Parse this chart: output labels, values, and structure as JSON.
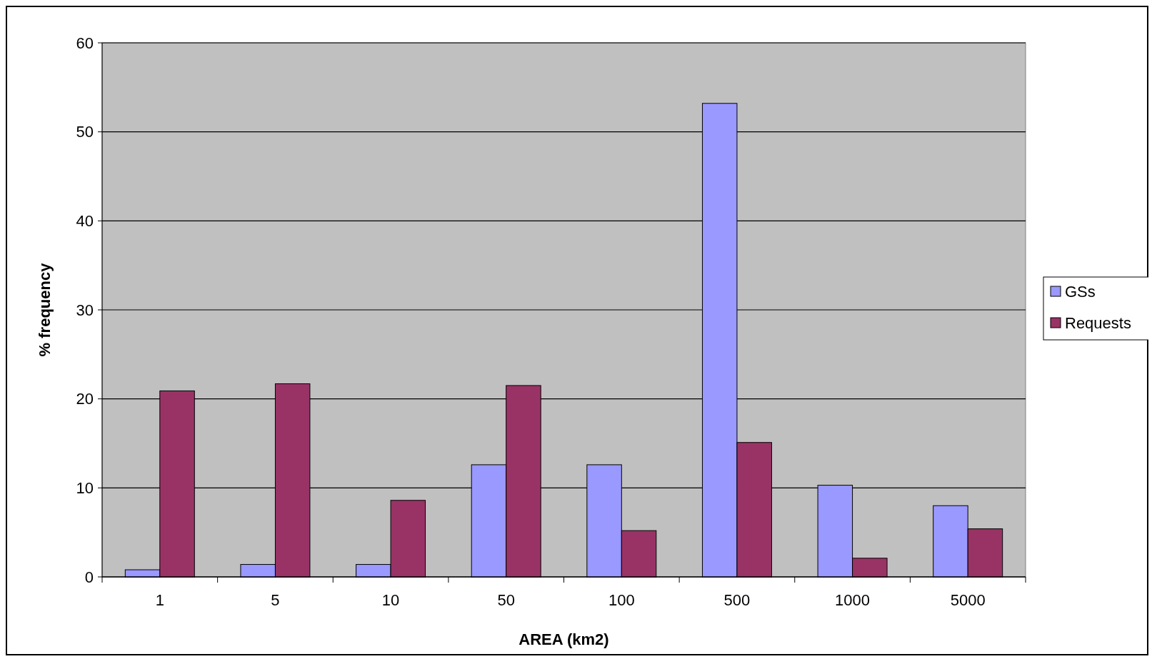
{
  "chart_data": {
    "type": "bar",
    "xlabel": "AREA (km2)",
    "ylabel": "% frequency",
    "categories": [
      "1",
      "5",
      "10",
      "50",
      "100",
      "500",
      "1000",
      "5000"
    ],
    "series": [
      {
        "name": "GSs",
        "color": "#9999ff",
        "values": [
          0.8,
          1.4,
          1.4,
          12.6,
          12.6,
          53.2,
          10.3,
          8.0
        ]
      },
      {
        "name": "Requests",
        "color": "#993366",
        "values": [
          20.9,
          21.7,
          8.6,
          21.5,
          5.2,
          15.1,
          2.1,
          5.4
        ]
      }
    ],
    "ylim": [
      0,
      60
    ],
    "yticks": [
      0,
      10,
      20,
      30,
      40,
      50,
      60
    ],
    "grid": "y",
    "legend": "right"
  }
}
